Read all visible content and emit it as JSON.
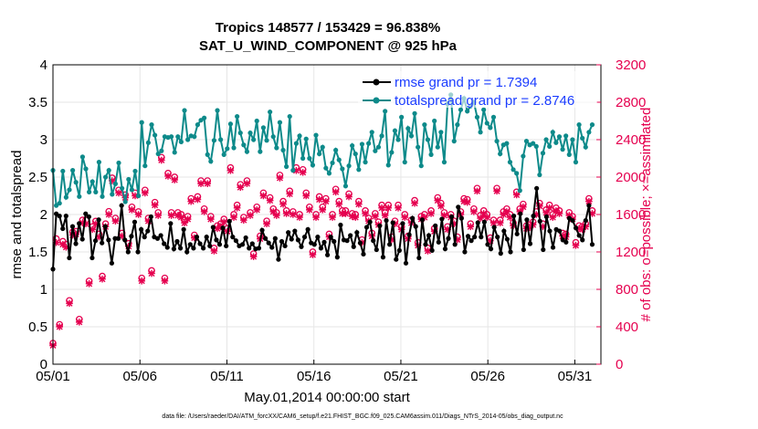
{
  "chart_data": {
    "type": "line",
    "title": "Tropics 148577 / 153429 = 96.838%",
    "subtitle": "SAT_U_WIND_COMPONENT @ 925 hPa",
    "xlabel": "May.01,2014 00:00:00 start",
    "ylabel": "rmse and totalspread",
    "ylabel_right": "# of obs: o=possible; ×=assimilated",
    "x_ticks": [
      "05/01",
      "05/06",
      "05/11",
      "05/16",
      "05/21",
      "05/26",
      "05/31"
    ],
    "y_ticks": [
      "0",
      "0.5",
      "1",
      "1.5",
      "2",
      "2.5",
      "3",
      "3.5",
      "4"
    ],
    "y2_ticks": [
      "0",
      "400",
      "800",
      "1200",
      "1600",
      "2000",
      "2400",
      "2800",
      "3200"
    ],
    "xlim": [
      0,
      31.5
    ],
    "ylim": [
      0,
      4
    ],
    "y2lim": [
      0,
      3200
    ],
    "grid": true,
    "legend_position": "top-right",
    "series": [
      {
        "name": "rmse grand pr = 1.7394",
        "color": "#000000",
        "axis": "left",
        "values": [
          1.27,
          2.01,
          1.98,
          1.81,
          1.98,
          1.42,
          1.84,
          1.61,
          1.88,
          1.67,
          2.01,
          1.97,
          1.42,
          1.65,
          1.93,
          1.62,
          1.84,
          1.66,
          1.35,
          1.68,
          1.68,
          2.12,
          1.66,
          1.5,
          1.71,
          1.9,
          1.5,
          1.8,
          1.7,
          1.78,
          1.97,
          1.7,
          1.68,
          1.72,
          1.61,
          1.56,
          1.88,
          1.54,
          1.64,
          1.55,
          1.8,
          1.5,
          1.6,
          1.55,
          1.7,
          1.61,
          1.55,
          1.7,
          1.58,
          1.83,
          1.66,
          1.6,
          1.82,
          1.58,
          1.91,
          1.7,
          1.65,
          1.58,
          1.6,
          1.69,
          1.55,
          1.61,
          1.54,
          1.55,
          1.79,
          1.68,
          1.62,
          1.56,
          1.68,
          1.4,
          1.64,
          1.58,
          1.76,
          1.67,
          1.78,
          1.66,
          1.57,
          1.7,
          1.8,
          1.62,
          1.6,
          1.7,
          1.55,
          1.63,
          1.46,
          1.7,
          1.64,
          1.43,
          1.86,
          1.66,
          1.65,
          1.72,
          1.57,
          1.76,
          1.62,
          1.47,
          1.83,
          1.9,
          1.65,
          1.53,
          1.85,
          1.43,
          1.92,
          1.6,
          1.89,
          1.4,
          1.52,
          1.88,
          1.35,
          1.73,
          1.95,
          1.84,
          1.42,
          1.93,
          1.6,
          1.72,
          1.52,
          1.85,
          1.63,
          1.94,
          1.54,
          1.68,
          1.97,
          1.6,
          2.1,
          1.95,
          1.5,
          1.71,
          1.65,
          1.7,
          1.89,
          1.7,
          1.9,
          1.6,
          1.54,
          1.83,
          1.7,
          1.48,
          1.78,
          1.67,
          1.5,
          1.98,
          1.74,
          2.01,
          1.53,
          1.93,
          1.61,
          1.98,
          2.35,
          1.91,
          1.53,
          1.97,
          1.78,
          1.56,
          1.8,
          1.78,
          1.66,
          1.63,
          1.95,
          1.92,
          1.82,
          1.72,
          1.66,
          1.92,
          2.12,
          1.6
        ]
      },
      {
        "name": "totalspread grand pr = 2.8746",
        "color": "#0d8a8a",
        "axis": "left",
        "values": [
          2.59,
          2.12,
          2.15,
          2.58,
          2.23,
          2.33,
          2.59,
          2.43,
          2.24,
          2.77,
          2.61,
          2.3,
          2.44,
          2.3,
          2.7,
          2.24,
          2.5,
          2.59,
          2.27,
          2.41,
          2.69,
          2.35,
          2.17,
          2.47,
          2.33,
          2.58,
          2.25,
          3.23,
          2.65,
          2.96,
          3.2,
          3.06,
          2.81,
          2.85,
          3.04,
          3.03,
          3.04,
          2.83,
          3.04,
          2.97,
          3.39,
          3.0,
          3.05,
          3.04,
          3.2,
          3.26,
          3.29,
          2.8,
          2.71,
          2.99,
          3.39,
          3.0,
          2.8,
          2.88,
          3.21,
          2.89,
          3.31,
          3.09,
          2.93,
          2.84,
          3.09,
          3.0,
          3.25,
          2.84,
          3.16,
          2.99,
          3.37,
          3.04,
          2.89,
          3.23,
          2.86,
          2.64,
          3.31,
          2.59,
          2.95,
          3.05,
          2.75,
          3.01,
          2.75,
          2.66,
          3.06,
          2.81,
          2.9,
          2.62,
          2.55,
          2.69,
          2.86,
          2.73,
          2.61,
          2.38,
          2.65,
          2.92,
          2.81,
          2.6,
          2.94,
          2.7,
          2.95,
          3.1,
          2.85,
          2.9,
          3.05,
          3.38,
          2.66,
          2.83,
          3.12,
          3.0,
          3.3,
          2.7,
          3.15,
          3.05,
          3.35,
          2.9,
          2.65,
          3.2,
          3.0,
          2.8,
          3.25,
          2.9,
          3.1,
          2.7,
          3.48,
          3.6,
          2.98,
          3.2,
          3.4,
          3.55,
          3.38,
          3.45,
          3.5,
          3.3,
          3.1,
          3.4,
          3.22,
          3.16,
          3.3,
          2.98,
          2.81,
          2.93,
          2.95,
          2.7,
          2.6,
          2.55,
          2.32,
          2.78,
          2.98,
          2.93,
          2.95,
          2.91,
          2.53,
          2.82,
          3.0,
          2.91,
          3.1,
          2.96,
          3.04,
          2.87,
          3.05,
          2.8,
          3.0,
          2.7,
          3.2,
          3.02,
          2.9,
          3.1,
          3.2
        ]
      },
      {
        "name": "possible",
        "color": "#e5004f",
        "axis": "right",
        "values": [
          224,
          1340,
          424,
          1312,
          1280,
          680,
          1412,
          1420,
          480,
          1540,
          1540,
          888,
          1470,
          1528,
          1390,
          940,
          1500,
          1632,
          1990,
          1560,
          1860,
          1400,
          1810,
          1290,
          1680,
          1830,
          1630,
          920,
          1860,
          1560,
          1000,
          1730,
          1620,
          2210,
          920,
          2040,
          1620,
          2000,
          1620,
          1600,
          1540,
          1580,
          1770,
          1380,
          1790,
          1960,
          1660,
          1960,
          1580,
          1240,
          1480,
          1500,
          1550,
          1450,
          2100,
          1600,
          1700,
          1920,
          1570,
          1960,
          1620,
          1180,
          1680,
          1370,
          1830,
          1530,
          1780,
          1660,
          1620,
          2020,
          1740,
          1640,
          1850,
          1630,
          2100,
          1600,
          2080,
          1830,
          1680,
          1200,
          1600,
          1790,
          1680,
          1770,
          1390,
          1600,
          1870,
          1740,
          1640,
          1640,
          1820,
          1610,
          1600,
          1740,
          1330,
          1640,
          1560,
          1400,
          1610,
          1520,
          1700,
          1620,
          1700,
          1360,
          1530,
          1700,
          1470,
          1600,
          1370,
          1540,
          1750,
          1300,
          1580,
          1600,
          1240,
          1640,
          1450,
          1780,
          1720,
          1620,
          1470,
          1600,
          1530,
          1360,
          1630,
          1770,
          1760,
          1500,
          1660,
          1880,
          1590,
          1640,
          1600,
          1350,
          1540,
          1880,
          1540,
          1630,
          1660,
          1600,
          1510,
          1840,
          1660,
          1710,
          1480,
          1490,
          1520,
          1630,
          1720,
          1500,
          1650,
          1700,
          1600,
          1670,
          1640,
          1400,
          1390,
          1620,
          1580,
          1300,
          1480,
          1470,
          1500,
          1770,
          1640
        ]
      },
      {
        "name": "assimilated",
        "color": "#e5004f",
        "axis": "right",
        "values": [
          200,
          1300,
          400,
          1280,
          1250,
          650,
          1380,
          1390,
          450,
          1510,
          1500,
          860,
          1440,
          1500,
          1360,
          910,
          1470,
          1600,
          1960,
          1530,
          1830,
          1370,
          1780,
          1260,
          1650,
          1800,
          1600,
          890,
          1830,
          1530,
          970,
          1700,
          1590,
          2180,
          890,
          2010,
          1590,
          1970,
          1590,
          1570,
          1510,
          1550,
          1740,
          1350,
          1760,
          1930,
          1630,
          1930,
          1550,
          1210,
          1450,
          1470,
          1520,
          1420,
          2070,
          1570,
          1670,
          1890,
          1540,
          1930,
          1590,
          1150,
          1650,
          1340,
          1800,
          1500,
          1750,
          1630,
          1590,
          1990,
          1710,
          1610,
          1820,
          1600,
          2070,
          1570,
          2050,
          1800,
          1650,
          1170,
          1570,
          1760,
          1650,
          1740,
          1360,
          1570,
          1840,
          1710,
          1610,
          1610,
          1790,
          1580,
          1570,
          1710,
          1300,
          1610,
          1530,
          1370,
          1580,
          1490,
          1670,
          1590,
          1670,
          1330,
          1500,
          1670,
          1440,
          1570,
          1340,
          1510,
          1720,
          1270,
          1550,
          1570,
          1210,
          1610,
          1420,
          1750,
          1690,
          1590,
          1440,
          1570,
          1500,
          1330,
          1600,
          1740,
          1730,
          1470,
          1630,
          1850,
          1560,
          1610,
          1570,
          1320,
          1510,
          1850,
          1510,
          1600,
          1630,
          1570,
          1480,
          1810,
          1630,
          1680,
          1450,
          1460,
          1490,
          1600,
          1690,
          1470,
          1620,
          1670,
          1570,
          1640,
          1610,
          1370,
          1360,
          1590,
          1550,
          1270,
          1450,
          1440,
          1470,
          1740,
          1610
        ]
      }
    ],
    "footer": "data file: /Users/raeder/DAI/ATM_forcXX/CAM6_setup/f.e21.FHIST_BGC.f09_025.CAM6assim.011/Diags_NTrS_2014-05/obs_diag_output.nc"
  }
}
